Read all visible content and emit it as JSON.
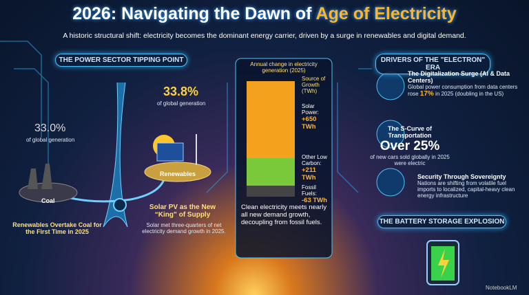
{
  "title": {
    "lead": "2026: Navigating the Dawn of ",
    "highlight": "Age of Electricity"
  },
  "subtitle": "A historic structural shift: electricity becomes the dominant energy carrier, driven by a surge in renewables and digital demand.",
  "left": {
    "heading": "THE POWER SECTOR TIPPING POINT",
    "coal": {
      "share": "33.0%",
      "note": "of global generation",
      "label": "Coal"
    },
    "renewables": {
      "share": "33.8%",
      "note": "of global generation",
      "label": "Renewables"
    },
    "caption": "Renewables Overtake Coal for the First Time in 2025",
    "solar": {
      "title": "Solar PV as the New “King” of Supply",
      "text": "Solar met three-quarters of net electricity demand growth in 2025."
    }
  },
  "center": {
    "heading": "Annual change in electricity generation (2025)",
    "legend_title": "Source of Growth (TWh)",
    "items": [
      {
        "label": "Solar Power:",
        "value": "+650 TWh"
      },
      {
        "label": "Other Low Carbon:",
        "value": "+211 TWh"
      },
      {
        "label": "Fossil Fuels:",
        "value": "-63 TWh"
      }
    ],
    "note": "Clean electricity meets nearly all new demand growth, decoupling from fossil fuels."
  },
  "right": {
    "heading": "DRIVERS OF THE \"ELECTRON\" ERA",
    "digital": {
      "title": "The Digitalization Surge (AI & Data Centers)",
      "text_before": "Global power consumption from data centers rose ",
      "highlight": "17%",
      "text_after": " in 2025 (doubling in the US)"
    },
    "transport": {
      "title": "The S-Curve of Transportation",
      "figure": "Over 25%",
      "text": "of new cars sold globally in 2025 were electric"
    },
    "security": {
      "title": "Security Through Sovereignty",
      "text": "Nations are shifting from volatile fuel imports to localized, capital-heavy clean energy infrastructure"
    },
    "battery": "THE BATTERY STORAGE EXPLOSION"
  },
  "footer": "NotebookLM"
}
